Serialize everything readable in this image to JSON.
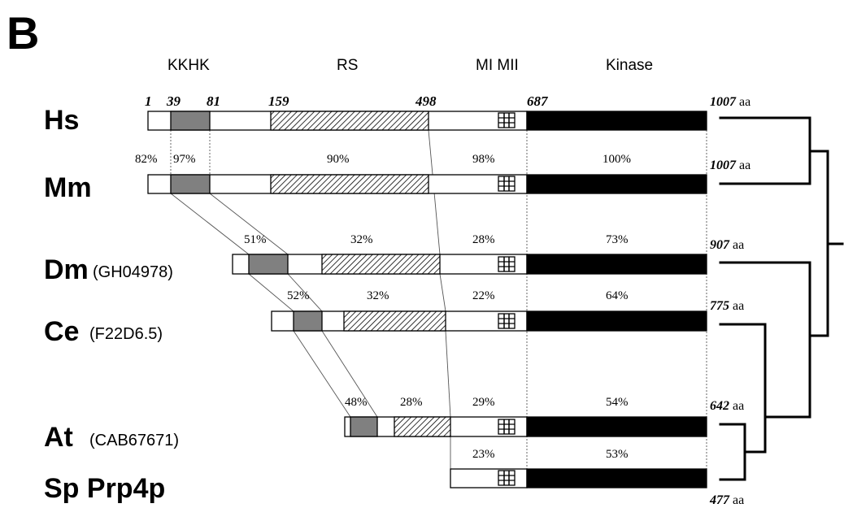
{
  "panel_label": "B",
  "domain_labels": {
    "kkhk": "KKHK",
    "rs": "RS",
    "mi_mii": "MI MII",
    "kinase": "Kinase"
  },
  "human_positions": {
    "p1": "1",
    "p39": "39",
    "p81": "81",
    "p159": "159",
    "p498": "498",
    "p687": "687"
  },
  "length_unit": "aa",
  "species": {
    "hs": {
      "name": "Hs",
      "length": "1007"
    },
    "mm": {
      "name": "Mm",
      "accession": "",
      "length": "1007",
      "identity": {
        "n": "82%",
        "kkhk": "97%",
        "rs": "90%",
        "mid": "98%",
        "kinase": "100%"
      }
    },
    "dm": {
      "name": "Dm",
      "accession": "(GH04978)",
      "length": "907",
      "identity": {
        "kkhk": "51%",
        "rs": "32%",
        "mid": "28%",
        "kinase": "73%"
      }
    },
    "ce": {
      "name": "Ce",
      "accession": "(F22D6.5)",
      "length": "775",
      "identity": {
        "kkhk": "52%",
        "rs": "32%",
        "mid": "22%",
        "kinase": "64%"
      }
    },
    "at": {
      "name": "At",
      "accession": "(CAB67671)",
      "length": "642",
      "identity": {
        "kkhk": "48%",
        "rs": "28%",
        "mid": "29%",
        "kinase": "54%"
      }
    },
    "sp": {
      "name": "Sp Prp4p",
      "length": "477",
      "identity": {
        "mid": "23%",
        "kinase": "53%"
      }
    }
  }
}
